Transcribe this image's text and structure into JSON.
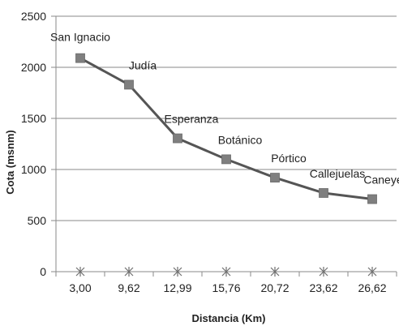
{
  "chart_data": {
    "type": "line",
    "xlabel": "Distancia (Km)",
    "ylabel": "Cota (msnm)",
    "ylim": [
      0,
      2500
    ],
    "yticks": [
      0,
      500,
      1000,
      1500,
      2000,
      2500
    ],
    "categories": [
      "3,00",
      "9,62",
      "12,99",
      "15,76",
      "20,72",
      "23,62",
      "26,62"
    ],
    "series": [
      {
        "values": [
          2090,
          1830,
          1305,
          1100,
          920,
          770,
          710
        ],
        "point_labels": [
          "San Ignacio",
          "Judía",
          "Esperanza",
          "Botánico",
          "Pórtico",
          "Callejuelas",
          "Caneyes"
        ],
        "marker": "square",
        "color": "#7f7f7f"
      },
      {
        "values": [
          0,
          0,
          0,
          0,
          0,
          0,
          0
        ],
        "marker": "asterisk",
        "color": "#6f6f6f"
      }
    ],
    "grid": true,
    "legend": "none"
  }
}
